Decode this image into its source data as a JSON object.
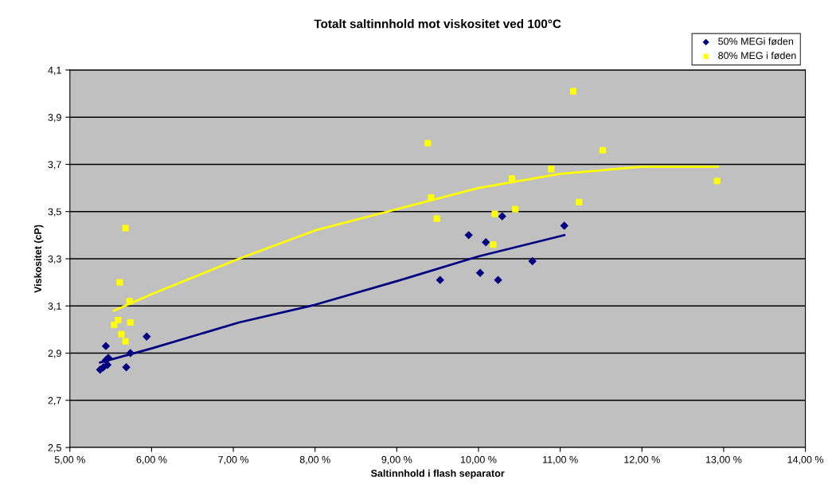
{
  "chart_data": {
    "type": "scatter",
    "title": "Totalt saltinnhold mot viskositet ved 100°C",
    "xlabel": "Saltinnhold i flash separator",
    "ylabel": "Viskositet (cP)",
    "xlim": [
      5,
      14
    ],
    "xticks": [
      {
        "value": 5,
        "label": "5,00 %"
      },
      {
        "value": 6,
        "label": "6,00 %"
      },
      {
        "value": 7,
        "label": "7,00 %"
      },
      {
        "value": 8,
        "label": "8,00 %"
      },
      {
        "value": 9,
        "label": "9,00 %"
      },
      {
        "value": 10,
        "label": "10,00 %"
      },
      {
        "value": 11,
        "label": "11,00 %"
      },
      {
        "value": 12,
        "label": "12,00 %"
      },
      {
        "value": 13,
        "label": "13,00 %"
      },
      {
        "value": 14,
        "label": "14,00 %"
      }
    ],
    "ylim": [
      2.5,
      4.1
    ],
    "yticks": [
      {
        "value": 2.5,
        "label": "2,5"
      },
      {
        "value": 2.7,
        "label": "2,7"
      },
      {
        "value": 2.9,
        "label": "2,9"
      },
      {
        "value": 3.1,
        "label": "3,1"
      },
      {
        "value": 3.3,
        "label": "3,3"
      },
      {
        "value": 3.5,
        "label": "3,5"
      },
      {
        "value": 3.7,
        "label": "3,7"
      },
      {
        "value": 3.9,
        "label": "3,9"
      },
      {
        "value": 4.1,
        "label": "4,1"
      }
    ],
    "grid": "y",
    "legend": "top right",
    "series": [
      {
        "name": "50% MEGi føden",
        "color": "#000080",
        "marker": "diamond",
        "x": [
          10.29,
          11.05,
          9.88,
          10.09,
          10.66,
          10.02,
          9.53,
          10.24,
          5.94,
          5.44,
          5.74,
          5.47,
          5.44,
          5.69,
          5.46,
          5.41,
          5.37
        ],
        "values": [
          3.48,
          3.44,
          3.4,
          3.37,
          3.29,
          3.24,
          3.21,
          3.21,
          2.97,
          2.93,
          2.9,
          2.88,
          2.87,
          2.84,
          2.85,
          2.84,
          2.83
        ]
      },
      {
        "name": "80% MEG i føden",
        "color": "#ffff00",
        "marker": "square",
        "x": [
          5.68,
          5.61,
          5.73,
          5.59,
          5.54,
          5.74,
          5.63,
          5.68,
          9.38,
          11.52,
          10.89,
          10.41,
          9.42,
          11.23,
          10.45,
          10.2,
          9.49,
          10.18,
          11.16,
          12.92
        ],
        "values": [
          3.43,
          3.2,
          3.12,
          3.04,
          3.02,
          3.03,
          2.98,
          2.95,
          3.79,
          3.76,
          3.68,
          3.64,
          3.56,
          3.54,
          3.51,
          3.49,
          3.47,
          3.36,
          4.01,
          3.63
        ]
      },
      {
        "type": "line",
        "color": "#000080",
        "marker": "none",
        "x": [
          5.37,
          6,
          7.07,
          8,
          9,
          10,
          11.05
        ],
        "values": [
          2.86,
          2.92,
          3.03,
          3.105,
          3.205,
          3.31,
          3.4
        ]
      },
      {
        "type": "line",
        "color": "#ffff00",
        "marker": "none",
        "x": [
          5.54,
          6,
          7.07,
          8,
          9,
          10,
          11,
          12,
          12.93
        ],
        "values": [
          3.08,
          3.15,
          3.3,
          3.42,
          3.51,
          3.6,
          3.66,
          3.69,
          3.69
        ]
      }
    ]
  }
}
